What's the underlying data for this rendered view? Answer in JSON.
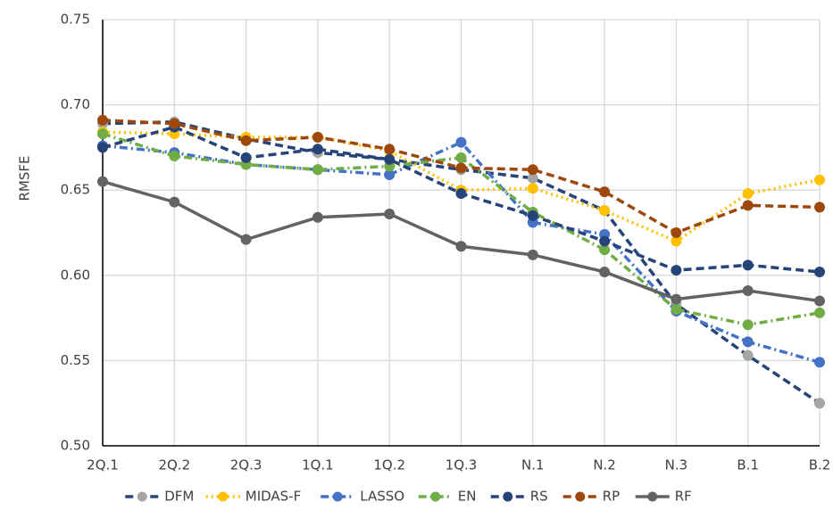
{
  "chart_data": {
    "type": "line",
    "y_label": "RMSFE",
    "categories": [
      "2Q.1",
      "2Q.2",
      "2Q.3",
      "1Q.1",
      "1Q.2",
      "1Q.3",
      "N.1",
      "N.2",
      "N.3",
      "B.1",
      "B.2"
    ],
    "series": [
      {
        "name": "DFM",
        "color": "#a5a5a5",
        "line_color": "#264478",
        "dash": "dash",
        "values": [
          0.689,
          0.69,
          0.68,
          0.672,
          0.668,
          0.662,
          0.657,
          0.638,
          0.583,
          0.553,
          0.525
        ]
      },
      {
        "name": "MIDAS-F",
        "color": "#ffc000",
        "line_color": "#ffc000",
        "dash": "dot",
        "values": [
          0.684,
          0.683,
          0.681,
          0.681,
          0.673,
          0.65,
          0.651,
          0.638,
          0.62,
          0.648,
          0.656
        ]
      },
      {
        "name": "LASSO",
        "color": "#4472c4",
        "line_color": "#4472c4",
        "dash": "dashdot",
        "values": [
          0.676,
          0.672,
          0.665,
          0.662,
          0.659,
          0.678,
          0.631,
          0.624,
          0.579,
          0.561,
          0.549
        ]
      },
      {
        "name": "EN",
        "color": "#70ad47",
        "line_color": "#70ad47",
        "dash": "dashdot",
        "values": [
          0.683,
          0.67,
          0.665,
          0.662,
          0.664,
          0.669,
          0.637,
          0.615,
          0.58,
          0.571,
          0.578
        ]
      },
      {
        "name": "RS",
        "color": "#264478",
        "line_color": "#264478",
        "dash": "dash",
        "values": [
          0.675,
          0.687,
          0.669,
          0.674,
          0.668,
          0.648,
          0.635,
          0.62,
          0.603,
          0.606,
          0.602
        ]
      },
      {
        "name": "RP",
        "color": "#9e480e",
        "line_color": "#9e480e",
        "dash": "dash",
        "values": [
          0.691,
          0.689,
          0.679,
          0.681,
          0.674,
          0.663,
          0.662,
          0.649,
          0.625,
          0.641,
          0.64
        ]
      },
      {
        "name": "RF",
        "color": "#636363",
        "line_color": "#636363",
        "dash": "solid",
        "values": [
          0.655,
          0.643,
          0.621,
          0.634,
          0.636,
          0.617,
          0.612,
          0.602,
          0.586,
          0.591,
          0.585
        ]
      }
    ],
    "ylim": [
      0.5,
      0.75
    ],
    "yticks": [
      {
        "value": 0.5,
        "label": "0.50"
      },
      0.55,
      {
        "value": 0.6,
        "label": "0.60"
      },
      0.65,
      {
        "value": 0.7,
        "label": "0.70"
      },
      0.75
    ],
    "grid": true,
    "legend": "bottom"
  }
}
